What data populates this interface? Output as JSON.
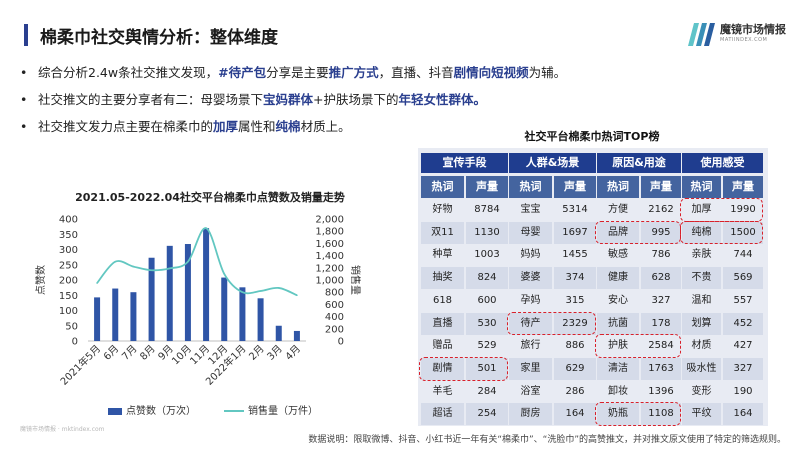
{
  "header": {
    "title": "棉柔巾社交舆情分析：整体维度",
    "logo_name": "魔镜市场情报",
    "logo_sub": "MATIINDEX.COM"
  },
  "bullets": [
    [
      {
        "t": "综合分析2.4w条社交推文发现，",
        "h": false
      },
      {
        "t": "#待产包",
        "h": true
      },
      {
        "t": "分享是主要",
        "h": false
      },
      {
        "t": "推广方式",
        "h": true
      },
      {
        "t": "，直播、抖音",
        "h": false
      },
      {
        "t": "剧情向短视频",
        "h": true
      },
      {
        "t": "为辅。",
        "h": false
      }
    ],
    [
      {
        "t": "社交推文的主要分享者有二：母婴场景下",
        "h": false
      },
      {
        "t": "宝妈群体",
        "h": true
      },
      {
        "t": "+护肤场景下的",
        "h": false
      },
      {
        "t": "年轻女性群体。",
        "h": true
      }
    ],
    [
      {
        "t": "社交推文发力点主要在棉柔巾的",
        "h": false
      },
      {
        "t": "加厚",
        "h": true
      },
      {
        "t": "属性和",
        "h": false
      },
      {
        "t": "纯棉",
        "h": true
      },
      {
        "t": "材质上。",
        "h": false
      }
    ]
  ],
  "chart_data": {
    "type": "bar",
    "title": "2021.05-2022.04社交平台棉柔巾点赞数及销量走势",
    "categories": [
      "2021年5月",
      "6月",
      "7月",
      "8月",
      "9月",
      "10月",
      "11月",
      "12月",
      "2022年1月",
      "2月",
      "3月",
      "4月"
    ],
    "series": [
      {
        "name": "点赞数（万次）",
        "kind": "bar",
        "axis": "left",
        "color": "#2f55a6",
        "values": [
          143,
          172,
          160,
          273,
          312,
          318,
          370,
          208,
          176,
          140,
          50,
          33
        ]
      },
      {
        "name": "销售量（万件）",
        "kind": "line",
        "axis": "right",
        "color": "#62c7c1",
        "values": [
          950,
          1300,
          1220,
          1160,
          1190,
          1300,
          1850,
          1100,
          800,
          820,
          870,
          750
        ]
      }
    ],
    "ylabel_left": "点赞数",
    "ylabel_right": "销售量",
    "ylim_left": [
      0,
      400
    ],
    "ylim_right": [
      0,
      2000
    ],
    "yticks_left": [
      "0",
      "50",
      "100",
      "150",
      "200",
      "250",
      "300",
      "350",
      "400"
    ],
    "yticks_right": [
      "0",
      "200",
      "400",
      "600",
      "800",
      "1,000",
      "1,200",
      "1,400",
      "1,600",
      "1,800",
      "2,000"
    ],
    "grid": false,
    "legend": "bottom"
  },
  "table": {
    "title": "社交平台棉柔巾热词TOP榜",
    "groups": [
      "宣传手段",
      "人群&场景",
      "原因&用途",
      "使用感受"
    ],
    "sub_headers": [
      "热词",
      "声量"
    ],
    "rows": [
      [
        "好物",
        "8784",
        "宝宝",
        "5314",
        "方便",
        "2162",
        "加厚",
        "1990"
      ],
      [
        "双11",
        "1130",
        "母婴",
        "1697",
        "品牌",
        "995",
        "纯棉",
        "1500"
      ],
      [
        "种草",
        "1003",
        "妈妈",
        "1455",
        "敏感",
        "786",
        "亲肤",
        "744"
      ],
      [
        "抽奖",
        "824",
        "婆婆",
        "374",
        "健康",
        "628",
        "不贵",
        "569"
      ],
      [
        "618",
        "600",
        "孕妈",
        "315",
        "安心",
        "327",
        "温和",
        "557"
      ],
      [
        "直播",
        "530",
        "待产",
        "2329",
        "抗菌",
        "178",
        "划算",
        "452"
      ],
      [
        "赠品",
        "529",
        "旅行",
        "886",
        "护肤",
        "2584",
        "材质",
        "427"
      ],
      [
        "剧情",
        "501",
        "家里",
        "629",
        "清洁",
        "1763",
        "吸水性",
        "327"
      ],
      [
        "羊毛",
        "284",
        "浴室",
        "286",
        "卸妆",
        "1396",
        "变形",
        "190"
      ],
      [
        "超话",
        "254",
        "厨房",
        "164",
        "奶瓶",
        "1108",
        "平纹",
        "164"
      ]
    ]
  },
  "footer": {
    "watermark": "魔镜市场情报 · mktindex.com",
    "note": "数据说明：限取微博、抖音、小红书近一年有关“棉柔巾”、“洗脸巾”的高赞推文，并对推文原文使用了特定的筛选规则。"
  }
}
